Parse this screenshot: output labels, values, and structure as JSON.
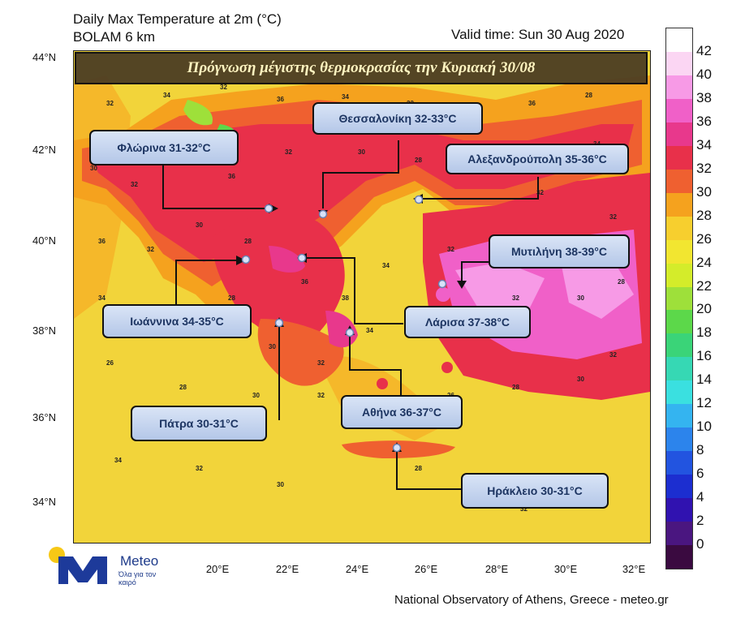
{
  "header": {
    "title_line1": "Daily Max Temperature at 2m (°C)",
    "title_line2": "BOLAM 6 km",
    "valid_time": "Valid time: Sun 30 Aug 2020"
  },
  "banner": "Πρόγνωση μέγιστης θερμοκρασίας την Κυριακή 30/08",
  "cities": [
    {
      "name": "Φλώρινα 31-32°C"
    },
    {
      "name": "Θεσσαλονίκη 32-33°C"
    },
    {
      "name": "Αλεξανδρούπολη 35-36°C"
    },
    {
      "name": "Μυτιλήνη 38-39°C"
    },
    {
      "name": "Ιωάννινα 34-35°C"
    },
    {
      "name": "Λάρισα 37-38°C"
    },
    {
      "name": "Πάτρα 30-31°C"
    },
    {
      "name": "Αθήνα 36-37°C"
    },
    {
      "name": "Ηράκλειο 30-31°C"
    }
  ],
  "axes": {
    "lat_labels": [
      "44°N",
      "42°N",
      "40°N",
      "38°N",
      "36°N",
      "34°N"
    ],
    "lon_labels": [
      "20°E",
      "22°E",
      "24°E",
      "26°E",
      "28°E",
      "30°E",
      "32°E"
    ]
  },
  "colorbar": {
    "ticks": [
      "42",
      "40",
      "38",
      "36",
      "34",
      "32",
      "30",
      "28",
      "26",
      "24",
      "22",
      "20",
      "18",
      "16",
      "14",
      "12",
      "10",
      "8",
      "6",
      "4",
      "2",
      "0"
    ],
    "colors": [
      "#ffffff",
      "#fbd6f3",
      "#f79ae6",
      "#f060c8",
      "#e8388c",
      "#e8304a",
      "#ef6030",
      "#f5a21e",
      "#f7cf2e",
      "#f2e630",
      "#d4ec2a",
      "#9ee03a",
      "#5cd84a",
      "#3ad478",
      "#36d8b4",
      "#3ae0e0",
      "#34b4f0",
      "#2c84ec",
      "#2254e0",
      "#1c2ed0",
      "#3012b0",
      "#4a1680",
      "#3a0a40"
    ]
  },
  "map_numbers": [
    "32",
    "34",
    "32",
    "36",
    "34",
    "32",
    "30",
    "36",
    "28",
    "30",
    "32",
    "34",
    "36",
    "32",
    "30",
    "28",
    "26",
    "32",
    "34",
    "36",
    "32",
    "30",
    "28",
    "36",
    "38",
    "34",
    "32",
    "30",
    "28",
    "32",
    "34",
    "32",
    "28",
    "30",
    "32",
    "34",
    "36",
    "38",
    "32",
    "30",
    "28",
    "26",
    "28",
    "30",
    "32",
    "28",
    "26",
    "28",
    "30",
    "32",
    "34",
    "32",
    "30",
    "28",
    "32"
  ],
  "logo": {
    "word": "Meteo",
    "sub": "Όλα για τον καιρό"
  },
  "credit": "National Observatory of Athens, Greece - meteo.gr"
}
